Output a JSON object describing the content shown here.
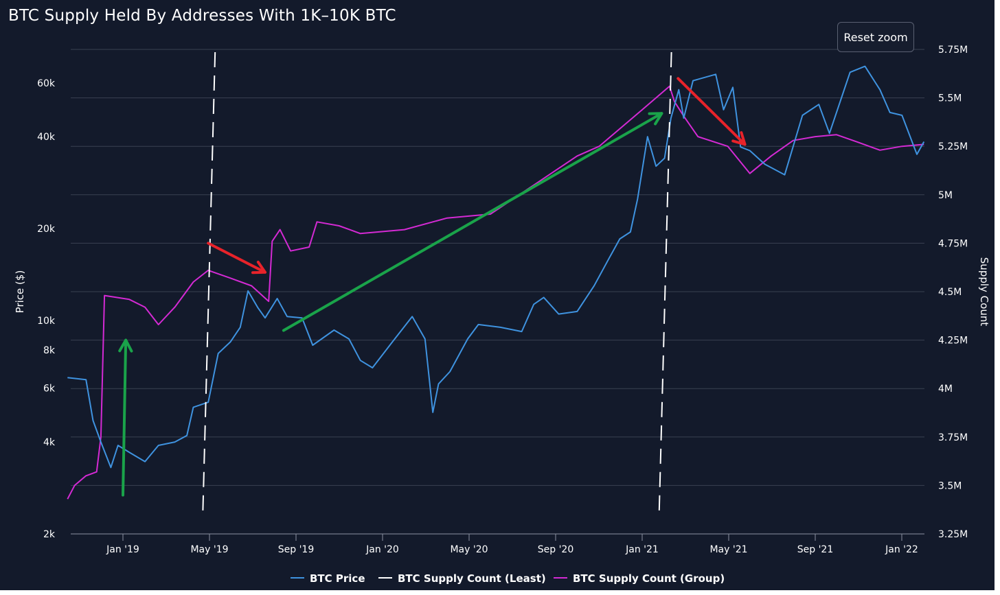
{
  "title": "BTC Supply Held By Addresses With 1K–10K BTC",
  "reset_button": "Reset zoom",
  "colors": {
    "background": "#131a2b",
    "gridline": "#3a4152",
    "price": "#3f93e0",
    "least": "#ffffff",
    "group": "#d42ad4",
    "arrow_green": "#1aa34a",
    "arrow_red": "#e8232a"
  },
  "chart_data": {
    "type": "line",
    "title": "BTC Supply Held By Addresses With 1K–10K BTC",
    "x_tick_labels": [
      "Jan '19",
      "May '19",
      "Sep '19",
      "Jan '20",
      "May '20",
      "Sep '20",
      "Jan '21",
      "May '21",
      "Sep '21",
      "Jan '22"
    ],
    "left_axis": {
      "label": "Price ($)",
      "scale": "log",
      "ticks": [
        2000,
        4000,
        6000,
        8000,
        10000,
        20000,
        40000,
        60000
      ],
      "tick_labels": [
        "2k",
        "4k",
        "6k",
        "8k",
        "10k",
        "20k",
        "40k",
        "60k"
      ]
    },
    "right_axis": {
      "label": "Supply Count",
      "ticks": [
        3250000,
        3500000,
        3750000,
        4000000,
        4250000,
        4500000,
        4750000,
        5000000,
        5250000,
        5500000,
        5750000
      ],
      "tick_labels": [
        "3.25M",
        "3.5M",
        "3.75M",
        "4M",
        "4.25M",
        "4.5M",
        "4.75M",
        "5M",
        "5.25M",
        "5.5M",
        "5.75M"
      ]
    },
    "series": [
      {
        "name": "BTC Price",
        "axis": "left",
        "points": [
          [
            "2018-10-15",
            6500
          ],
          [
            "2018-11-10",
            6400
          ],
          [
            "2018-11-20",
            4700
          ],
          [
            "2018-12-01",
            4000
          ],
          [
            "2018-12-15",
            3300
          ],
          [
            "2018-12-25",
            3900
          ],
          [
            "2019-01-10",
            3700
          ],
          [
            "2019-02-01",
            3450
          ],
          [
            "2019-02-20",
            3900
          ],
          [
            "2019-03-15",
            4000
          ],
          [
            "2019-04-01",
            4200
          ],
          [
            "2019-04-10",
            5200
          ],
          [
            "2019-05-01",
            5400
          ],
          [
            "2019-05-15",
            7800
          ],
          [
            "2019-06-01",
            8500
          ],
          [
            "2019-06-15",
            9500
          ],
          [
            "2019-06-26",
            12500
          ],
          [
            "2019-07-10",
            11000
          ],
          [
            "2019-07-20",
            10200
          ],
          [
            "2019-08-06",
            11800
          ],
          [
            "2019-08-20",
            10300
          ],
          [
            "2019-09-10",
            10200
          ],
          [
            "2019-09-25",
            8300
          ],
          [
            "2019-10-25",
            9300
          ],
          [
            "2019-11-15",
            8700
          ],
          [
            "2019-12-01",
            7400
          ],
          [
            "2019-12-18",
            7000
          ],
          [
            "2020-01-15",
            8500
          ],
          [
            "2020-02-12",
            10300
          ],
          [
            "2020-03-01",
            8700
          ],
          [
            "2020-03-12",
            5000
          ],
          [
            "2020-03-20",
            6200
          ],
          [
            "2020-04-05",
            6800
          ],
          [
            "2020-04-30",
            8700
          ],
          [
            "2020-05-15",
            9700
          ],
          [
            "2020-06-15",
            9500
          ],
          [
            "2020-07-15",
            9200
          ],
          [
            "2020-08-01",
            11300
          ],
          [
            "2020-08-15",
            11900
          ],
          [
            "2020-09-05",
            10500
          ],
          [
            "2020-10-01",
            10700
          ],
          [
            "2020-10-25",
            13000
          ],
          [
            "2020-11-15",
            16000
          ],
          [
            "2020-11-30",
            18500
          ],
          [
            "2020-12-15",
            19500
          ],
          [
            "2020-12-25",
            25000
          ],
          [
            "2021-01-08",
            40000
          ],
          [
            "2021-01-20",
            32000
          ],
          [
            "2021-02-01",
            34000
          ],
          [
            "2021-02-10",
            46000
          ],
          [
            "2021-02-21",
            57000
          ],
          [
            "2021-02-28",
            46000
          ],
          [
            "2021-03-13",
            61000
          ],
          [
            "2021-04-14",
            64000
          ],
          [
            "2021-04-25",
            49000
          ],
          [
            "2021-05-08",
            58000
          ],
          [
            "2021-05-19",
            37000
          ],
          [
            "2021-06-01",
            36000
          ],
          [
            "2021-06-22",
            32500
          ],
          [
            "2021-07-20",
            30000
          ],
          [
            "2021-08-14",
            47000
          ],
          [
            "2021-09-06",
            51000
          ],
          [
            "2021-09-21",
            41000
          ],
          [
            "2021-10-20",
            65000
          ],
          [
            "2021-11-10",
            68000
          ],
          [
            "2021-12-01",
            57000
          ],
          [
            "2021-12-15",
            48000
          ],
          [
            "2022-01-01",
            47000
          ],
          [
            "2022-01-22",
            35000
          ],
          [
            "2022-02-01",
            38500
          ]
        ]
      },
      {
        "name": "BTC Supply Count (Least)",
        "axis": "right",
        "style": "dashed",
        "x_dates": [
          "2019-05-01",
          "2021-02-01"
        ]
      },
      {
        "name": "BTC Supply Count (Group)",
        "axis": "right",
        "points": [
          [
            "2018-10-15",
            3430000
          ],
          [
            "2018-10-25",
            3500000
          ],
          [
            "2018-11-10",
            3550000
          ],
          [
            "2018-11-25",
            3570000
          ],
          [
            "2018-12-01",
            3750000
          ],
          [
            "2018-12-06",
            4480000
          ],
          [
            "2019-01-10",
            4460000
          ],
          [
            "2019-02-01",
            4420000
          ],
          [
            "2019-02-20",
            4330000
          ],
          [
            "2019-03-15",
            4420000
          ],
          [
            "2019-04-10",
            4550000
          ],
          [
            "2019-05-01",
            4610000
          ],
          [
            "2019-06-01",
            4570000
          ],
          [
            "2019-07-01",
            4530000
          ],
          [
            "2019-07-25",
            4450000
          ],
          [
            "2019-07-30",
            4760000
          ],
          [
            "2019-08-10",
            4820000
          ],
          [
            "2019-08-25",
            4710000
          ],
          [
            "2019-09-20",
            4730000
          ],
          [
            "2019-10-01",
            4860000
          ],
          [
            "2019-11-01",
            4840000
          ],
          [
            "2019-12-01",
            4800000
          ],
          [
            "2020-02-01",
            4820000
          ],
          [
            "2020-04-01",
            4880000
          ],
          [
            "2020-06-01",
            4900000
          ],
          [
            "2020-08-01",
            5050000
          ],
          [
            "2020-10-01",
            5200000
          ],
          [
            "2020-11-01",
            5250000
          ],
          [
            "2021-01-01",
            5440000
          ],
          [
            "2021-02-08",
            5560000
          ],
          [
            "2021-02-15",
            5480000
          ],
          [
            "2021-03-01",
            5400000
          ],
          [
            "2021-03-20",
            5300000
          ],
          [
            "2021-05-01",
            5250000
          ],
          [
            "2021-06-01",
            5110000
          ],
          [
            "2021-07-01",
            5200000
          ],
          [
            "2021-08-01",
            5280000
          ],
          [
            "2021-09-01",
            5300000
          ],
          [
            "2021-10-01",
            5310000
          ],
          [
            "2021-11-01",
            5270000
          ],
          [
            "2021-12-01",
            5230000
          ],
          [
            "2022-01-01",
            5250000
          ],
          [
            "2022-02-01",
            5260000
          ]
        ]
      }
    ],
    "annotations": [
      {
        "type": "arrow",
        "color": "green",
        "from": [
          "2019-01-01",
          3450000
        ],
        "to": [
          "2019-01-05",
          4250000
        ],
        "axis": "right"
      },
      {
        "type": "arrow",
        "color": "red",
        "from": [
          "2019-05-01",
          4750000
        ],
        "to": [
          "2019-07-20",
          4600000
        ],
        "axis": "right"
      },
      {
        "type": "arrow",
        "color": "green",
        "from": [
          "2019-08-15",
          4300000
        ],
        "to": [
          "2021-01-28",
          5420000
        ],
        "axis": "right"
      },
      {
        "type": "arrow",
        "color": "red",
        "from": [
          "2021-02-20",
          5600000
        ],
        "to": [
          "2021-05-25",
          5260000
        ],
        "axis": "right"
      }
    ],
    "legend": [
      "BTC Price",
      "BTC Supply Count (Least)",
      "BTC Supply Count (Group)"
    ],
    "legend_position": "bottom",
    "grid": true
  }
}
